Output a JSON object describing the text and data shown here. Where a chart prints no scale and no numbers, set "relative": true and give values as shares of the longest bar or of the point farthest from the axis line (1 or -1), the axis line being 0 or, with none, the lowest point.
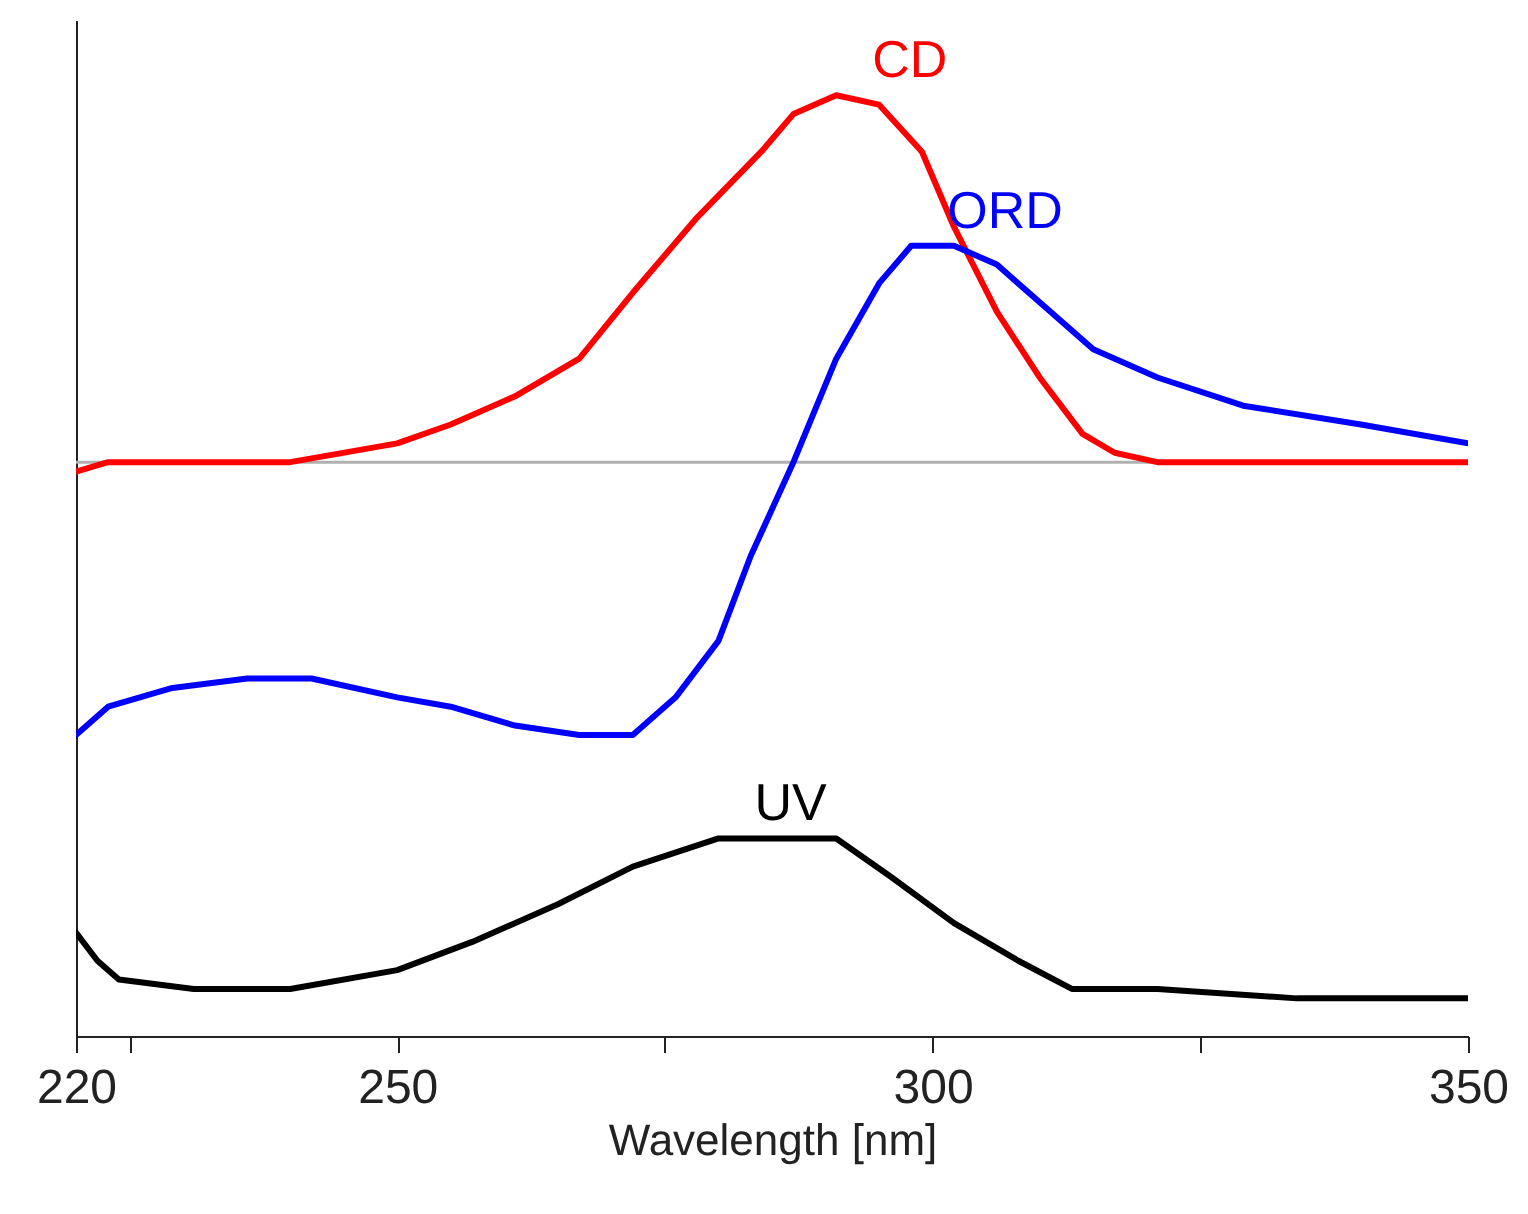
{
  "chart_data": {
    "type": "line",
    "xlabel": "Wavelength [nm]",
    "relative": true,
    "legend": false,
    "grid": false,
    "xlim": [
      220,
      350
    ],
    "xticks": [
      220,
      {
        "value": 225,
        "label": null
      },
      250,
      {
        "value": 275,
        "label": null
      },
      300,
      {
        "value": 325,
        "label": null
      },
      350
    ],
    "ref_lines": [
      {
        "axis": "y",
        "value": 0.61,
        "color": "#b0b0b0"
      }
    ],
    "series": [
      {
        "name": "CD",
        "color": "#ff0000",
        "x": [
          220,
          223,
          231,
          240,
          250,
          255,
          261,
          267,
          272,
          278,
          284,
          287,
          291,
          295,
          299,
          302,
          306,
          310,
          314,
          317,
          321,
          329,
          340,
          350
        ],
        "values": [
          0.6,
          0.61,
          0.61,
          0.61,
          0.63,
          0.65,
          0.68,
          0.72,
          0.79,
          0.87,
          0.94,
          0.98,
          1.0,
          0.99,
          0.94,
          0.86,
          0.77,
          0.7,
          0.64,
          0.62,
          0.61,
          0.61,
          0.61,
          0.61
        ]
      },
      {
        "name": "ORD",
        "color": "#0000ff",
        "x": [
          220,
          223,
          229,
          236,
          242,
          250,
          255,
          261,
          267,
          272,
          276,
          280,
          283,
          287,
          291,
          295,
          298,
          302,
          306,
          310,
          315,
          321,
          329,
          340,
          350
        ],
        "values": [
          0.32,
          0.35,
          0.37,
          0.38,
          0.38,
          0.36,
          0.35,
          0.33,
          0.32,
          0.32,
          0.36,
          0.42,
          0.51,
          0.61,
          0.72,
          0.8,
          0.84,
          0.84,
          0.82,
          0.78,
          0.73,
          0.7,
          0.67,
          0.65,
          0.63
        ]
      },
      {
        "name": "UV",
        "color": "#000000",
        "x": [
          220,
          222,
          224,
          231,
          240,
          250,
          257,
          265,
          272,
          280,
          285,
          291,
          296,
          302,
          308,
          313,
          321,
          334,
          350
        ],
        "values": [
          0.11,
          0.08,
          0.06,
          0.05,
          0.05,
          0.07,
          0.1,
          0.14,
          0.18,
          0.21,
          0.21,
          0.21,
          0.17,
          0.12,
          0.08,
          0.05,
          0.05,
          0.04,
          0.04
        ]
      }
    ]
  }
}
